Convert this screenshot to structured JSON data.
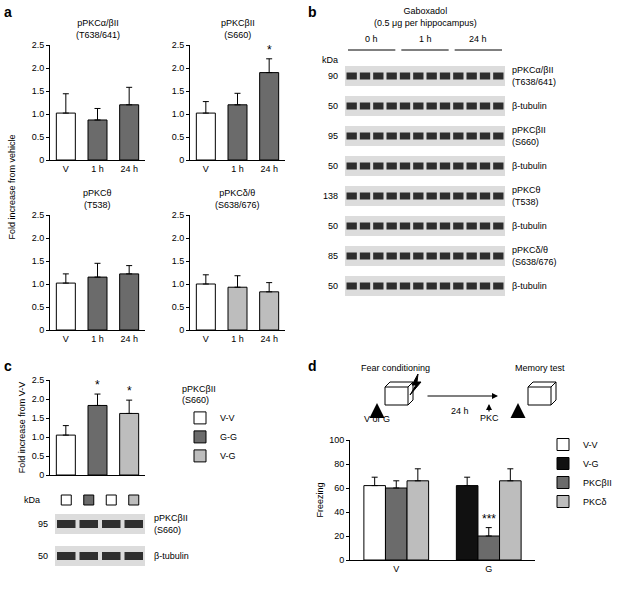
{
  "panel_labels": [
    "a",
    "b",
    "c",
    "d"
  ],
  "chart_data": [
    {
      "type": "bar",
      "title": "pPKCα/βII\n(T638/641)",
      "ylabel": "Fold increase from vehicle",
      "categories": [
        "V",
        "1 h",
        "24 h"
      ],
      "values": [
        1.02,
        0.87,
        1.2
      ],
      "errors": [
        0.42,
        0.25,
        0.38
      ],
      "colors": [
        "#ffffff",
        "#6b6b6b",
        "#6b6b6b"
      ],
      "ylim": [
        0,
        2.5
      ],
      "yticks": [
        0,
        0.5,
        {
          "value": 1,
          "label": "1.0"
        },
        1.5,
        {
          "value": 2,
          "label": "2.0"
        },
        2.5
      ]
    },
    {
      "type": "bar",
      "title": "pPKCβII\n(S660)",
      "categories": [
        "V",
        "1 h",
        "24 h"
      ],
      "values": [
        1.02,
        1.2,
        1.9
      ],
      "errors": [
        0.25,
        0.25,
        0.3
      ],
      "significance": [
        null,
        null,
        "*"
      ],
      "colors": [
        "#ffffff",
        "#6b6b6b",
        "#6b6b6b"
      ],
      "ylim": [
        0,
        2.5
      ],
      "yticks": [
        0,
        0.5,
        {
          "value": 1,
          "label": "1.0"
        },
        1.5,
        {
          "value": 2,
          "label": "2.0"
        },
        2.5
      ]
    },
    {
      "type": "bar",
      "title": "pPKCθ\n(T538)",
      "categories": [
        "V",
        "1 h",
        "24 h"
      ],
      "values": [
        1.02,
        1.15,
        1.22
      ],
      "errors": [
        0.2,
        0.3,
        0.18
      ],
      "colors": [
        "#ffffff",
        "#6b6b6b",
        "#6b6b6b"
      ],
      "ylim": [
        0,
        2.5
      ],
      "yticks": [
        0,
        0.5,
        {
          "value": 1,
          "label": "1.0"
        },
        1.5,
        {
          "value": 2,
          "label": "2.0"
        },
        2.5
      ]
    },
    {
      "type": "bar",
      "title": "pPKCδ/θ\n(S638/676)",
      "categories": [
        "V",
        "1 h",
        "24 h"
      ],
      "values": [
        1.0,
        0.93,
        0.83
      ],
      "errors": [
        0.2,
        0.25,
        0.2
      ],
      "colors": [
        "#ffffff",
        "#bdbdbd",
        "#bdbdbd"
      ],
      "ylim": [
        0,
        2.5
      ],
      "yticks": [
        0,
        0.5,
        {
          "value": 1,
          "label": "1.0"
        },
        1.5,
        {
          "value": 2,
          "label": "2.0"
        },
        2.5
      ]
    },
    {
      "type": "bar",
      "title": "pPKCβII\n(S660)",
      "ylabel": "Fold increase from V-V",
      "categories": [
        "V-V",
        "G-G",
        "V-G"
      ],
      "values": [
        1.05,
        1.83,
        1.62
      ],
      "errors": [
        0.25,
        0.3,
        0.35
      ],
      "significance": [
        null,
        "*",
        "*"
      ],
      "colors": [
        "#ffffff",
        "#6b6b6b",
        "#bdbdbd"
      ],
      "ylim": [
        0,
        2.5
      ],
      "yticks": [
        0,
        0.5,
        {
          "value": 1,
          "label": "1.0"
        },
        1.5,
        {
          "value": 2,
          "label": "2.0"
        },
        2.5
      ],
      "legend": "right",
      "tick_labels": "y"
    },
    {
      "type": "bar",
      "ylabel": "Freezing",
      "categories": [
        "V",
        "G"
      ],
      "series": [
        {
          "name": "V-V",
          "color": "#ffffff",
          "values": [
            62,
            null
          ],
          "errors": [
            7,
            null
          ]
        },
        {
          "name": "V-G",
          "color": "#111111",
          "values": [
            null,
            62
          ],
          "errors": [
            null,
            7
          ]
        },
        {
          "name": "PKCβII",
          "color": "#6b6b6b",
          "values": [
            60,
            20
          ],
          "errors": [
            6,
            7
          ],
          "significance": [
            null,
            "***"
          ]
        },
        {
          "name": "PKCδ",
          "color": "#bdbdbd",
          "values": [
            66,
            66
          ],
          "errors": [
            10,
            10
          ]
        }
      ],
      "ylim": [
        0,
        100
      ],
      "yticks": [
        0,
        20,
        40,
        60,
        80,
        100
      ],
      "legend": "right"
    }
  ],
  "blot_b": {
    "title": "Gaboxadol\n(0.5 μg per hippocampus)",
    "groups": [
      "0 h",
      "1 h",
      "24 h"
    ],
    "lanes_per_group": 4,
    "kda_label": "kDa",
    "rows": [
      {
        "kda": 90,
        "label": "pPKCα/βII\n(T638/641)"
      },
      {
        "kda": 50,
        "label": "β-tubulin"
      },
      {
        "kda": 95,
        "label": "pPKCβII\n(S660)"
      },
      {
        "kda": 50,
        "label": "β-tubulin"
      },
      {
        "kda": 138,
        "label": "pPKCθ\n(T538)"
      },
      {
        "kda": 50,
        "label": "β-tubulin"
      },
      {
        "kda": 85,
        "label": "pPKCδ/θ\n(S638/676)"
      },
      {
        "kda": 50,
        "label": "β-tubulin"
      }
    ]
  },
  "blot_c": {
    "kda_label": "kDa",
    "lanes": [
      "V-V",
      "G-G",
      "V-V",
      "V-G"
    ],
    "rows": [
      {
        "kda": 95,
        "label": "pPKCβII\n(S660)"
      },
      {
        "kda": 50,
        "label": "β-tubulin"
      }
    ]
  },
  "schematic_d": {
    "left_label": "Fear conditioning",
    "right_label": "Memory test",
    "treatment": "V or G",
    "interval": "24 h",
    "injection": "PKC"
  }
}
